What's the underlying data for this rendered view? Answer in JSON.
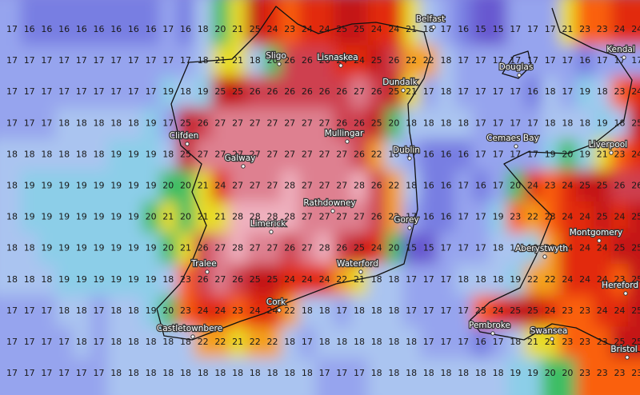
{
  "grid": {
    "rows": [
      [
        17,
        16,
        16,
        16,
        16,
        16,
        16,
        16,
        16,
        17,
        16,
        18,
        20,
        21,
        25,
        24,
        23,
        24,
        24,
        25,
        25,
        24,
        24,
        21,
        18,
        17,
        16,
        15,
        15,
        17,
        17,
        17,
        21,
        23,
        23,
        24,
        24
      ],
      [
        17,
        17,
        17,
        17,
        17,
        17,
        17,
        17,
        17,
        17,
        17,
        18,
        21,
        21,
        18,
        20,
        26,
        26,
        26,
        24,
        24,
        25,
        26,
        22,
        22,
        18,
        17,
        17,
        17,
        17,
        17,
        17,
        17,
        16,
        17,
        17,
        17
      ],
      [
        17,
        17,
        17,
        17,
        17,
        17,
        17,
        17,
        17,
        19,
        18,
        19,
        25,
        25,
        26,
        26,
        26,
        26,
        26,
        26,
        27,
        26,
        25,
        21,
        17,
        18,
        17,
        17,
        17,
        17,
        16,
        18,
        17,
        19,
        18,
        23,
        24
      ],
      [
        17,
        17,
        17,
        18,
        18,
        18,
        18,
        18,
        19,
        17,
        25,
        26,
        27,
        27,
        27,
        27,
        27,
        27,
        27,
        26,
        26,
        25,
        20,
        18,
        18,
        18,
        18,
        17,
        17,
        17,
        17,
        18,
        18,
        18,
        19,
        18,
        25
      ],
      [
        18,
        18,
        18,
        18,
        18,
        18,
        19,
        19,
        19,
        18,
        25,
        27,
        27,
        27,
        27,
        27,
        27,
        27,
        27,
        27,
        26,
        22,
        18,
        17,
        16,
        16,
        16,
        17,
        17,
        17,
        17,
        19,
        20,
        19,
        21,
        23,
        24
      ],
      [
        18,
        19,
        19,
        19,
        19,
        19,
        19,
        19,
        19,
        20,
        20,
        21,
        24,
        27,
        27,
        27,
        28,
        27,
        27,
        27,
        28,
        26,
        22,
        18,
        16,
        16,
        17,
        16,
        17,
        20,
        24,
        23,
        24,
        25,
        25,
        26,
        26
      ],
      [
        18,
        19,
        19,
        19,
        19,
        19,
        19,
        19,
        20,
        21,
        20,
        21,
        21,
        28,
        28,
        28,
        28,
        27,
        27,
        27,
        27,
        26,
        22,
        17,
        16,
        16,
        17,
        17,
        19,
        23,
        22,
        23,
        24,
        24,
        25,
        24,
        25
      ],
      [
        18,
        18,
        19,
        19,
        19,
        19,
        19,
        19,
        19,
        20,
        21,
        26,
        27,
        28,
        27,
        27,
        26,
        27,
        28,
        26,
        25,
        24,
        20,
        15,
        15,
        17,
        17,
        17,
        18,
        18,
        19,
        22,
        24,
        24,
        24,
        25,
        25
      ],
      [
        18,
        18,
        18,
        19,
        19,
        19,
        19,
        19,
        19,
        18,
        23,
        26,
        27,
        26,
        25,
        25,
        24,
        24,
        24,
        22,
        21,
        18,
        18,
        17,
        17,
        17,
        18,
        18,
        18,
        19,
        22,
        22,
        24,
        24,
        24,
        23,
        25
      ],
      [
        17,
        17,
        17,
        18,
        18,
        17,
        18,
        18,
        19,
        20,
        23,
        24,
        24,
        23,
        24,
        24,
        22,
        18,
        18,
        17,
        18,
        18,
        18,
        17,
        17,
        17,
        17,
        23,
        24,
        25,
        25,
        24,
        23,
        23,
        24,
        24,
        25
      ],
      [
        17,
        17,
        17,
        17,
        18,
        17,
        18,
        18,
        18,
        18,
        18,
        22,
        22,
        21,
        22,
        22,
        18,
        17,
        18,
        18,
        18,
        18,
        18,
        18,
        17,
        17,
        17,
        16,
        17,
        18,
        21,
        21,
        23,
        23,
        23,
        25,
        25
      ],
      [
        17,
        17,
        17,
        17,
        17,
        17,
        18,
        18,
        18,
        18,
        18,
        18,
        18,
        18,
        18,
        18,
        18,
        18,
        17,
        17,
        17,
        18,
        18,
        18,
        18,
        18,
        18,
        18,
        18,
        19,
        19,
        20,
        20,
        23,
        23,
        23,
        23
      ]
    ]
  },
  "places": [
    "Belfast",
    "Sligo",
    "Lisnaskea",
    "Douglas",
    "Kendal",
    "Dundalk",
    "Clifden",
    "Mullingar",
    "Cemaes Bay",
    "Liverpool",
    "Galway",
    "Dublin",
    "Rathdowney",
    "Limerick",
    "Gorey",
    "Montgomery",
    "Aberystwyth",
    "Tralee",
    "Waterford",
    "Hereford",
    "Cork",
    "Pembroke",
    "Swansea",
    "Castletownbere",
    "Bristol"
  ]
}
